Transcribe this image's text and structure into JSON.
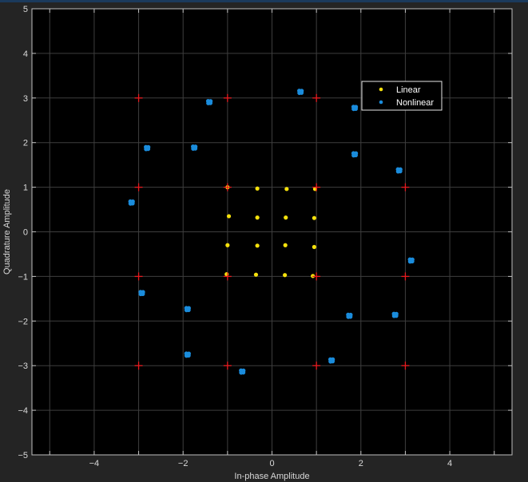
{
  "chart_data": {
    "type": "scatter",
    "xlabel": "In-phase Amplitude",
    "ylabel": "Quadrature Amplitude",
    "xlim": [
      -5.4,
      5.4
    ],
    "ylim": [
      -5,
      5
    ],
    "xticks": [
      -4,
      -2,
      0,
      2,
      4
    ],
    "yticks": [
      -5,
      -4,
      -3,
      -2,
      -1,
      0,
      1,
      2,
      3,
      4,
      5
    ],
    "grid": true,
    "legend_position": "top-right",
    "background": "#000000",
    "series": [
      {
        "name": "Linear",
        "marker": "dot",
        "color": "#f5e10c",
        "points": [
          [
            -1.0,
            1.0
          ],
          [
            -0.33,
            0.97
          ],
          [
            0.33,
            0.96
          ],
          [
            0.97,
            0.96
          ],
          [
            -0.97,
            0.35
          ],
          [
            -0.33,
            0.32
          ],
          [
            0.31,
            0.32
          ],
          [
            0.95,
            0.31
          ],
          [
            -1.0,
            -0.3
          ],
          [
            -0.33,
            -0.31
          ],
          [
            0.3,
            -0.3
          ],
          [
            0.95,
            -0.34
          ],
          [
            -1.02,
            -0.95
          ],
          [
            -0.36,
            -0.96
          ],
          [
            0.29,
            -0.97
          ],
          [
            0.92,
            -0.99
          ]
        ]
      },
      {
        "name": "Nonlinear",
        "marker": "dot-cluster",
        "color": "#1a8cdc",
        "points": [
          [
            -1.41,
            2.91
          ],
          [
            0.64,
            3.14
          ],
          [
            1.86,
            2.78
          ],
          [
            -2.81,
            1.88
          ],
          [
            -1.75,
            1.89
          ],
          [
            1.86,
            1.74
          ],
          [
            2.86,
            1.38
          ],
          [
            -3.16,
            0.66
          ],
          [
            3.13,
            -0.64
          ],
          [
            -2.93,
            -1.37
          ],
          [
            -1.9,
            -1.73
          ],
          [
            1.74,
            -1.88
          ],
          [
            2.77,
            -1.86
          ],
          [
            -1.9,
            -2.75
          ],
          [
            1.34,
            -2.88
          ],
          [
            -0.67,
            -3.13
          ]
        ]
      },
      {
        "name": "",
        "marker": "plus",
        "color": "#e8191e",
        "points": [
          [
            -3,
            3
          ],
          [
            -1,
            3
          ],
          [
            1,
            3
          ],
          [
            3,
            3
          ],
          [
            -3,
            1
          ],
          [
            -1,
            1
          ],
          [
            1,
            1
          ],
          [
            3,
            1
          ],
          [
            -3,
            -1
          ],
          [
            -1,
            -1
          ],
          [
            1,
            -1
          ],
          [
            3,
            -1
          ],
          [
            -3,
            -3
          ],
          [
            -1,
            -3
          ],
          [
            1,
            -3
          ],
          [
            3,
            -3
          ]
        ]
      }
    ],
    "legend": [
      {
        "label": "Linear",
        "color": "#f5e10c"
      },
      {
        "label": "Nonlinear",
        "color": "#1a8cdc"
      }
    ]
  }
}
